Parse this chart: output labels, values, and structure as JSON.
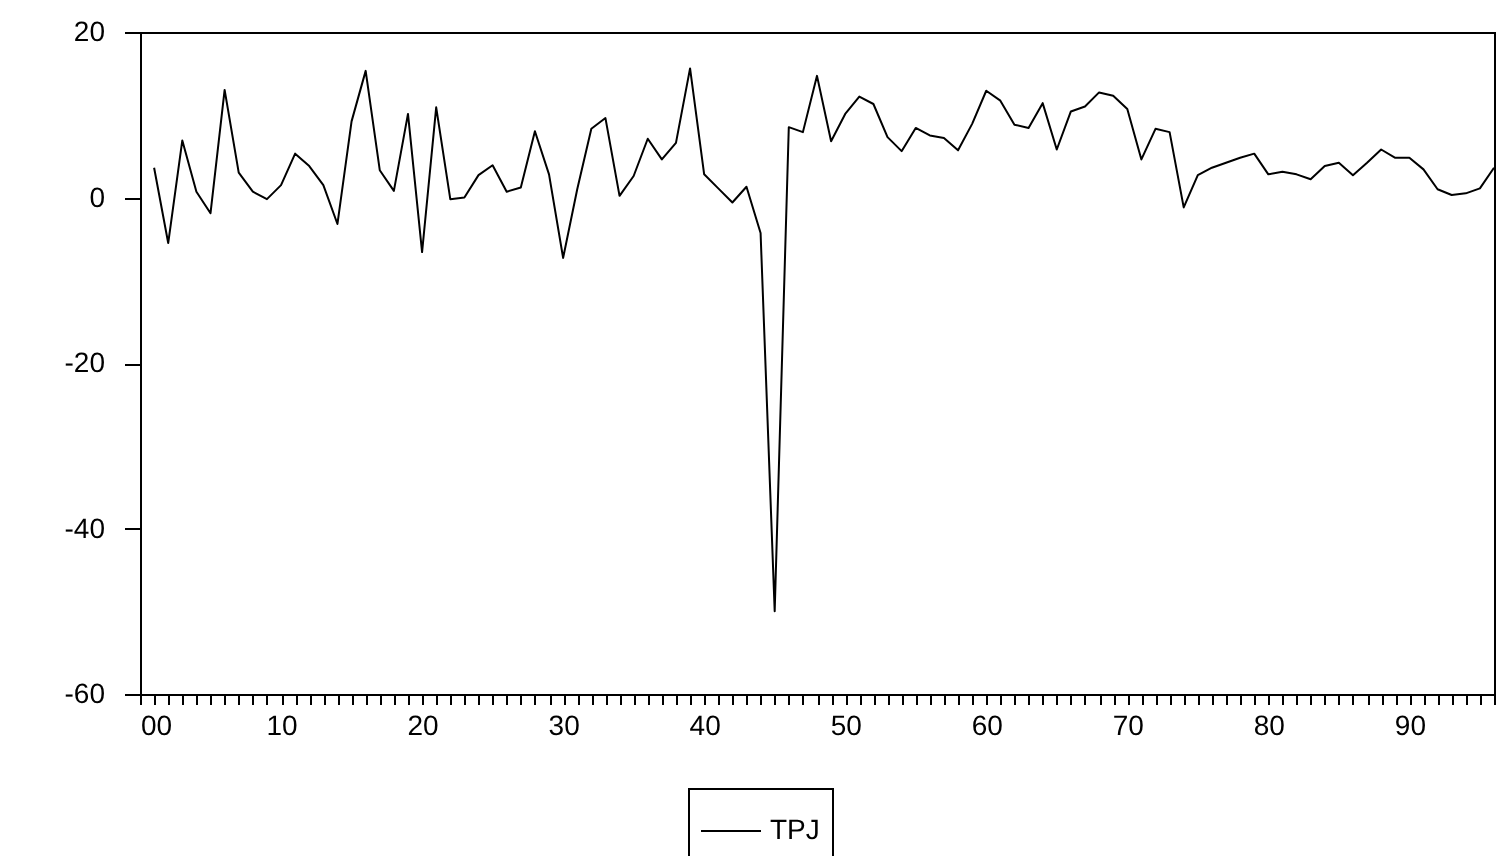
{
  "chart_data": {
    "type": "line",
    "x": [
      1,
      2,
      3,
      4,
      5,
      6,
      7,
      8,
      9,
      10,
      11,
      12,
      13,
      14,
      15,
      16,
      17,
      18,
      19,
      20,
      21,
      22,
      23,
      24,
      25,
      26,
      27,
      28,
      29,
      30,
      31,
      32,
      33,
      34,
      35,
      36,
      37,
      38,
      39,
      40,
      41,
      42,
      43,
      44,
      45,
      46,
      47,
      48,
      49,
      50,
      51,
      52,
      53,
      54,
      55,
      56,
      57,
      58,
      59,
      60,
      61,
      62,
      63,
      64,
      65,
      66,
      67,
      68,
      69,
      70,
      71,
      72,
      73,
      74,
      75,
      76,
      77,
      78,
      79,
      80,
      81,
      82,
      83,
      84,
      85,
      86,
      87,
      88,
      89,
      90,
      91,
      92,
      93,
      94,
      95,
      96
    ],
    "series": [
      {
        "name": "TPJ",
        "color": "#000000",
        "values": [
          3.6,
          -5.5,
          6.9,
          0.7,
          -1.9,
          13.0,
          3.0,
          0.7,
          -0.2,
          1.5,
          5.3,
          3.8,
          1.5,
          -3.2,
          9.2,
          15.3,
          3.3,
          0.8,
          10.1,
          -6.6,
          10.9,
          -0.2,
          0,
          2.7,
          3.9,
          0.7,
          1.2,
          8.0,
          2.8,
          -7.3,
          1.0,
          8.3,
          9.6,
          0.2,
          2.6,
          7.1,
          4.6,
          6.6,
          15.6,
          2.8,
          1.1,
          -0.6,
          1.3,
          -4.3,
          -50,
          8.5,
          7.9,
          14.7,
          6.8,
          10.1,
          12.2,
          11.3,
          7.3,
          5.6,
          8.4,
          7.5,
          7.2,
          5.7,
          8.9,
          12.9,
          11.7,
          8.8,
          8.4,
          11.4,
          5.8,
          10.4,
          11.0,
          12.7,
          12.3,
          10.7,
          4.6,
          8.3,
          7.9,
          -1.2,
          2.7,
          3.6,
          4.2,
          4.8,
          5.3,
          2.8,
          3.1,
          2.8,
          2.2,
          3.8,
          4.2,
          2.7,
          4.2,
          5.8,
          4.8,
          4.8,
          3.4,
          1.0,
          0.3,
          0.5,
          1.1,
          3.6
        ]
      }
    ],
    "xlim": [
      0,
      96
    ],
    "xticks": [
      {
        "value": 0,
        "label": "00"
      },
      {
        "value": 1,
        "label": null
      },
      {
        "value": 2,
        "label": null
      },
      {
        "value": 3,
        "label": null
      },
      {
        "value": 4,
        "label": null
      },
      {
        "value": 5,
        "label": null
      },
      {
        "value": 6,
        "label": null
      },
      {
        "value": 7,
        "label": null
      },
      {
        "value": 8,
        "label": null
      },
      {
        "value": 9,
        "label": null
      },
      {
        "value": 10,
        "label": "10"
      },
      {
        "value": 11,
        "label": null
      },
      {
        "value": 12,
        "label": null
      },
      {
        "value": 13,
        "label": null
      },
      {
        "value": 14,
        "label": null
      },
      {
        "value": 15,
        "label": null
      },
      {
        "value": 16,
        "label": null
      },
      {
        "value": 17,
        "label": null
      },
      {
        "value": 18,
        "label": null
      },
      {
        "value": 19,
        "label": null
      },
      {
        "value": 20,
        "label": "20"
      },
      {
        "value": 21,
        "label": null
      },
      {
        "value": 22,
        "label": null
      },
      {
        "value": 23,
        "label": null
      },
      {
        "value": 24,
        "label": null
      },
      {
        "value": 25,
        "label": null
      },
      {
        "value": 26,
        "label": null
      },
      {
        "value": 27,
        "label": null
      },
      {
        "value": 28,
        "label": null
      },
      {
        "value": 29,
        "label": null
      },
      {
        "value": 30,
        "label": "30"
      },
      {
        "value": 31,
        "label": null
      },
      {
        "value": 32,
        "label": null
      },
      {
        "value": 33,
        "label": null
      },
      {
        "value": 34,
        "label": null
      },
      {
        "value": 35,
        "label": null
      },
      {
        "value": 36,
        "label": null
      },
      {
        "value": 37,
        "label": null
      },
      {
        "value": 38,
        "label": null
      },
      {
        "value": 39,
        "label": null
      },
      {
        "value": 40,
        "label": "40"
      },
      {
        "value": 41,
        "label": null
      },
      {
        "value": 42,
        "label": null
      },
      {
        "value": 43,
        "label": null
      },
      {
        "value": 44,
        "label": null
      },
      {
        "value": 45,
        "label": null
      },
      {
        "value": 46,
        "label": null
      },
      {
        "value": 47,
        "label": null
      },
      {
        "value": 48,
        "label": null
      },
      {
        "value": 49,
        "label": null
      },
      {
        "value": 50,
        "label": "50"
      },
      {
        "value": 51,
        "label": null
      },
      {
        "value": 52,
        "label": null
      },
      {
        "value": 53,
        "label": null
      },
      {
        "value": 54,
        "label": null
      },
      {
        "value": 55,
        "label": null
      },
      {
        "value": 56,
        "label": null
      },
      {
        "value": 57,
        "label": null
      },
      {
        "value": 58,
        "label": null
      },
      {
        "value": 59,
        "label": null
      },
      {
        "value": 60,
        "label": "60"
      },
      {
        "value": 61,
        "label": null
      },
      {
        "value": 62,
        "label": null
      },
      {
        "value": 63,
        "label": null
      },
      {
        "value": 64,
        "label": null
      },
      {
        "value": 65,
        "label": null
      },
      {
        "value": 66,
        "label": null
      },
      {
        "value": 67,
        "label": null
      },
      {
        "value": 68,
        "label": null
      },
      {
        "value": 69,
        "label": null
      },
      {
        "value": 70,
        "label": "70"
      },
      {
        "value": 71,
        "label": null
      },
      {
        "value": 72,
        "label": null
      },
      {
        "value": 73,
        "label": null
      },
      {
        "value": 74,
        "label": null
      },
      {
        "value": 75,
        "label": null
      },
      {
        "value": 76,
        "label": null
      },
      {
        "value": 77,
        "label": null
      },
      {
        "value": 78,
        "label": null
      },
      {
        "value": 79,
        "label": null
      },
      {
        "value": 80,
        "label": "80"
      },
      {
        "value": 81,
        "label": null
      },
      {
        "value": 82,
        "label": null
      },
      {
        "value": 83,
        "label": null
      },
      {
        "value": 84,
        "label": null
      },
      {
        "value": 85,
        "label": null
      },
      {
        "value": 86,
        "label": null
      },
      {
        "value": 87,
        "label": null
      },
      {
        "value": 88,
        "label": null
      },
      {
        "value": 89,
        "label": null
      },
      {
        "value": 90,
        "label": "90"
      },
      {
        "value": 91,
        "label": null
      },
      {
        "value": 92,
        "label": null
      },
      {
        "value": 93,
        "label": null
      },
      {
        "value": 94,
        "label": null
      },
      {
        "value": 95,
        "label": null
      },
      {
        "value": 96,
        "label": null
      }
    ],
    "ylim": [
      -60,
      20
    ],
    "yticks": [
      -60,
      -40,
      -20,
      0,
      20
    ],
    "grid": false,
    "legend": "bottom",
    "marker": "none",
    "line_style": "solid"
  }
}
